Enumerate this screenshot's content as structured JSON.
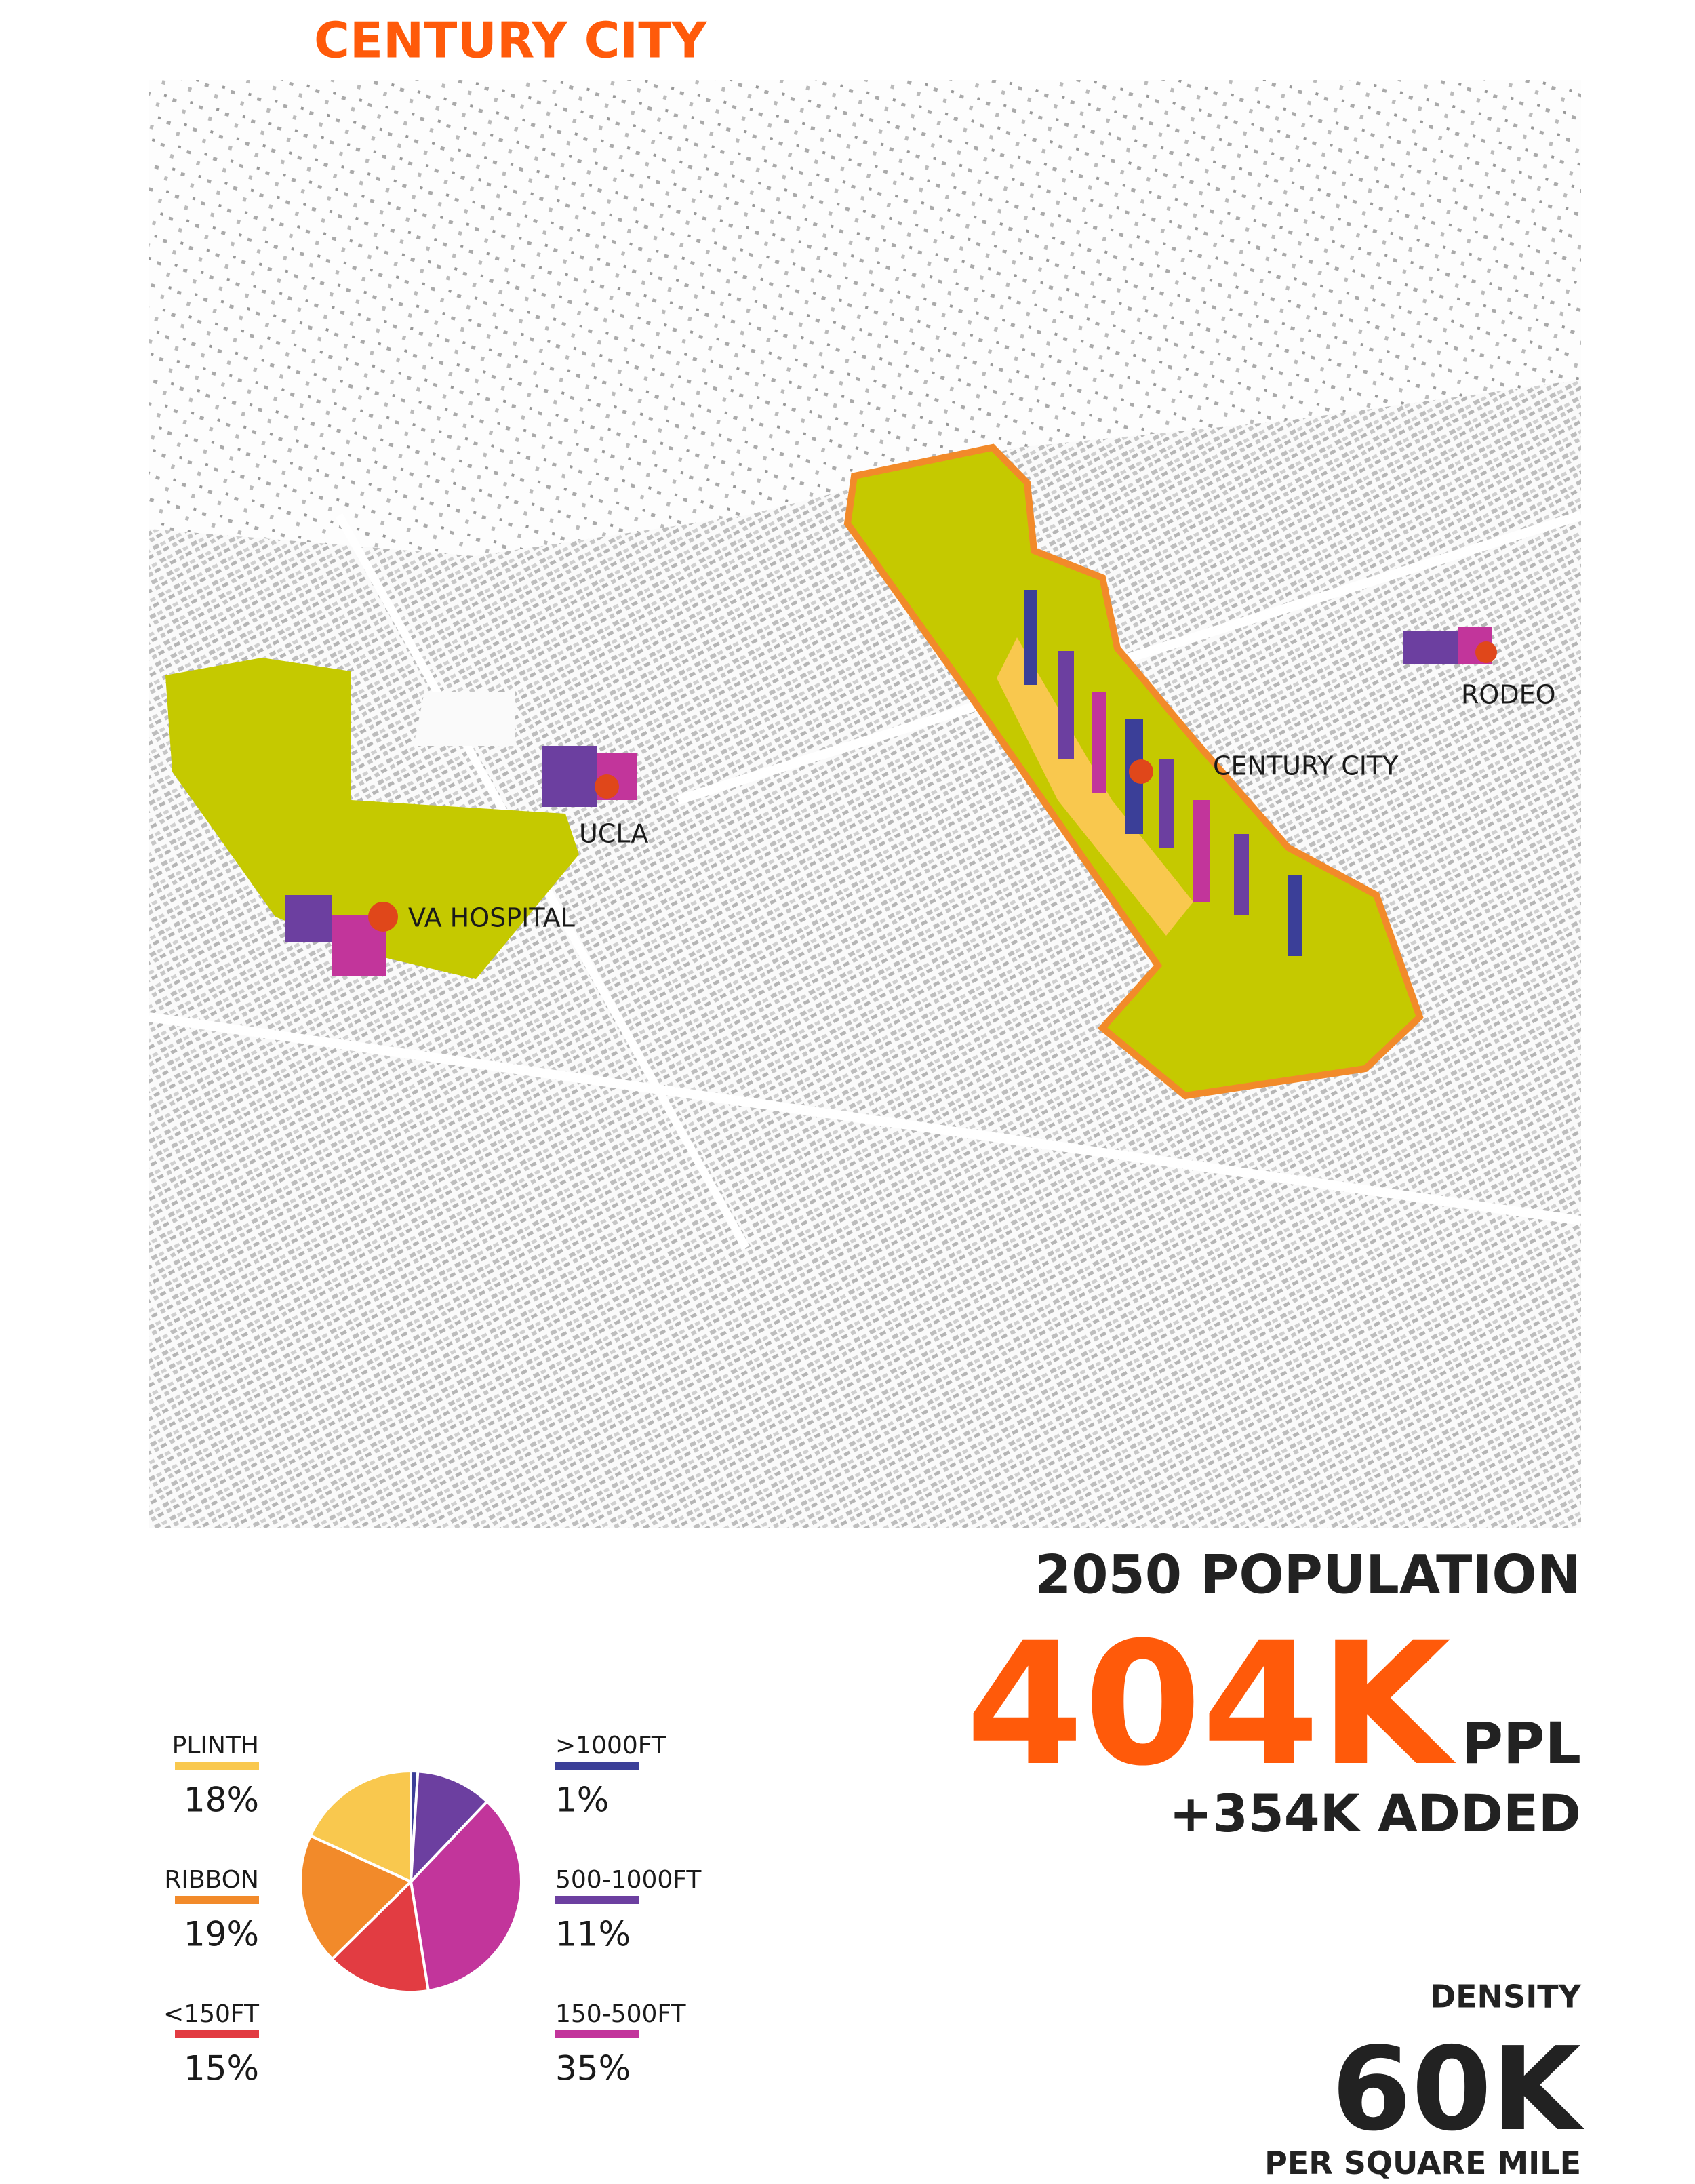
{
  "title": "CENTURY CITY",
  "map": {
    "labels": [
      "CENTURY CITY",
      "UCLA",
      "VA HOSPITAL",
      "RODEO"
    ]
  },
  "stats": {
    "heading": "2050 POPULATION",
    "population": "404K",
    "unit": "PPL",
    "added": "+354K ADDED",
    "density_heading": "DENSITY",
    "density": "60K",
    "density_unit": "PER SQUARE MILE"
  },
  "chart_data": {
    "type": "pie",
    "categories": [
      ">1000FT",
      "500-1000FT",
      "150-500FT",
      "<150FT",
      "RIBBON",
      "PLINTH"
    ],
    "values": [
      1,
      11,
      35,
      15,
      19,
      18
    ],
    "value_labels": [
      "1%",
      "11%",
      "35%",
      "15%",
      "19%",
      "18%"
    ],
    "colors": [
      "#3b3f98",
      "#6c3fa0",
      "#c2359b",
      "#e23c42",
      "#f28a2a",
      "#f9c84e"
    ]
  }
}
